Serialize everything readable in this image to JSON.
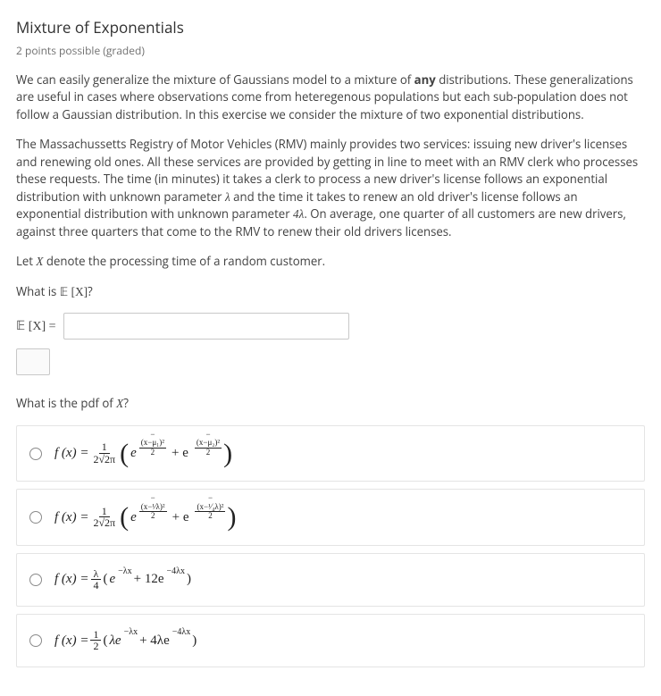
{
  "header": {
    "title": "Mixture of Exponentials",
    "points": "2 points possible (graded)"
  },
  "body": {
    "para1_pre": "We can easily generalize the mixture of Gaussians model to a mixture of ",
    "para1_bold": "any",
    "para1_post": " distributions. These generalizations are useful in cases where observations come from heteregenous populations but each sub-population does not follow a Gaussian distribution. In this exercise we consider the mixture of two exponential distributions.",
    "para2_pre": "The Massachussetts Registry of Motor Vehicles (RMV) mainly provides two services: issuing new driver's licenses and renewing old ones. All these services are provided by getting in line to meet with an RMV clerk who processes these requests. The time (in minutes) it takes a clerk to process a new driver's license follows an exponential distribution with unknown parameter ",
    "para2_lambda": "λ",
    "para2_mid": " and the time it takes to renew an old driver's license follows an exponential distribution with unknown parameter ",
    "para2_4lambda": "4λ",
    "para2_post": ". On average, one quarter of all customers are new drivers, against three quarters that come to the RMV to renew their old drivers licenses.",
    "para3_pre": "Let ",
    "para3_X": "X",
    "para3_post": " denote the processing time of a random customer."
  },
  "q1": {
    "prompt_pre": "What is ",
    "prompt_expr": "𝔼 [X]",
    "prompt_post": "?",
    "lhs": "𝔼 [X] ="
  },
  "q2": {
    "prompt_pre": "What is the pdf of ",
    "prompt_X": "X",
    "prompt_post": "?"
  },
  "choices": {
    "c1": {
      "lhs": "f (x) =",
      "frac_num": "1",
      "frac_den": "2√2π",
      "e": "e",
      "exp1_num": "(x−μ₁)²",
      "exp1_den": "2",
      "plus": "+ e",
      "exp2_num": "(x−μ₂)²",
      "exp2_den": "2"
    },
    "c2": {
      "lhs": "f (x) =",
      "frac_num": "1",
      "frac_den": "2√2π",
      "e": "e",
      "exp1_num": "(x−¹⁄λ)²",
      "exp1_den": "2",
      "plus": "+ e",
      "exp2_num": "(x−¹⁄₄λ)²",
      "exp2_den": "2"
    },
    "c3": {
      "lhs": "f (x) =",
      "frac_num": "λ",
      "frac_den": "4",
      "open": "(",
      "e1": "e",
      "exp1": "−λx",
      "plus": " + 12e",
      "exp2": "−4λx",
      "close": ")"
    },
    "c4": {
      "lhs": "f (x) =",
      "frac_num": "1",
      "frac_den": "2",
      "open": "(",
      "t1": "λe",
      "exp1": "−λx",
      "plus": " + 4λe",
      "exp2": "−4λx",
      "close": ")"
    }
  },
  "styling": {
    "background": "#ffffff",
    "text_color": "#414141",
    "muted_color": "#707070",
    "border_color": "#e4e4e4",
    "input_border": "#c8c8c8",
    "font_body": 14,
    "font_title": 17
  }
}
